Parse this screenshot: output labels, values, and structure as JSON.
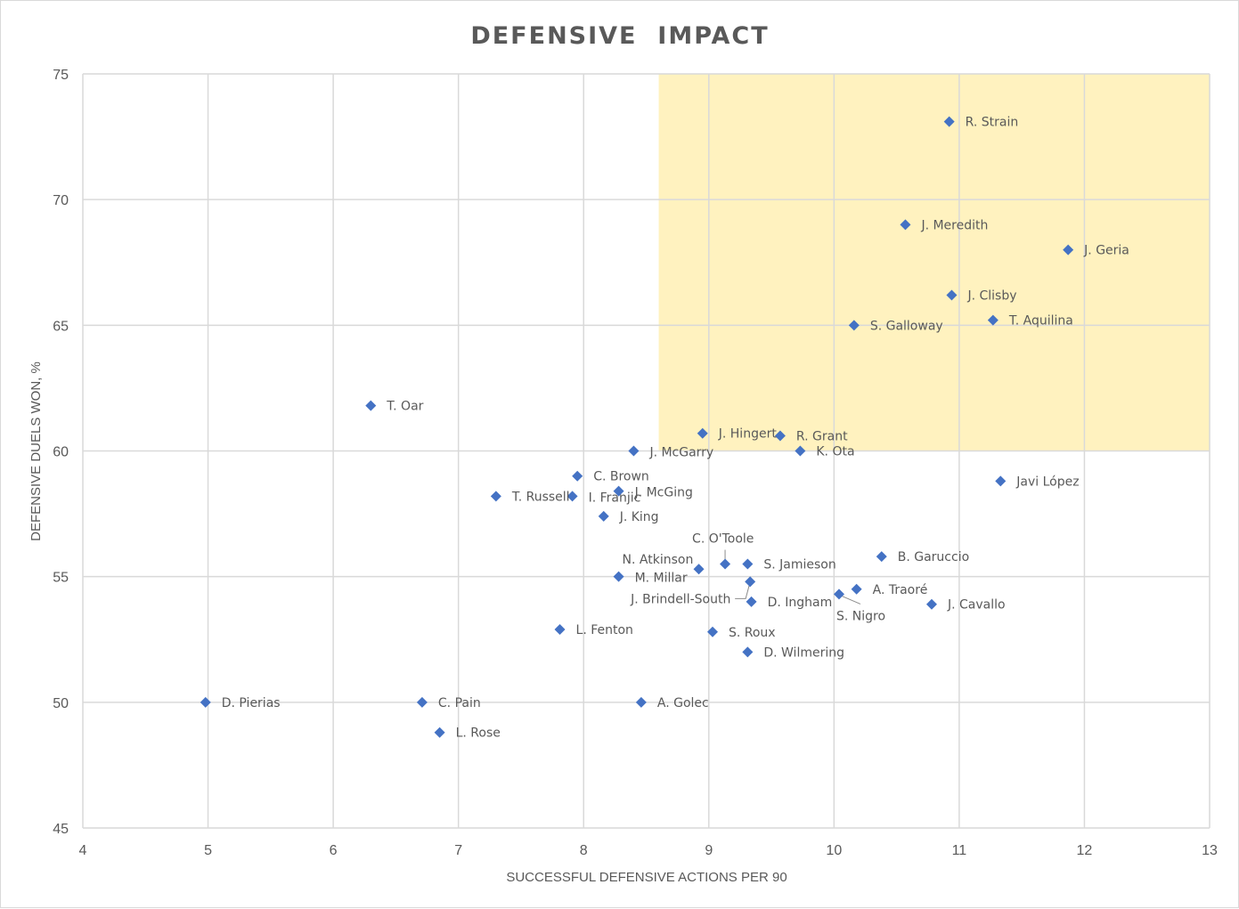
{
  "chart_data": {
    "type": "scatter",
    "title": "DEFENSIVE  IMPACT",
    "xlabel": "SUCCESSFUL DEFENSIVE ACTIONS PER 90",
    "ylabel": "DEFENSIVE DUELS WON, %",
    "xlim": [
      4,
      13
    ],
    "ylim": [
      45,
      75
    ],
    "xticks": [
      4,
      5,
      6,
      7,
      8,
      9,
      10,
      11,
      12,
      13
    ],
    "yticks": [
      45,
      50,
      55,
      60,
      65,
      70,
      75
    ],
    "grid": true,
    "legend": "none",
    "highlight_region": {
      "x": [
        8.6,
        13
      ],
      "y": [
        60,
        75
      ],
      "color": "#fff2bf"
    },
    "marker_color": "#4472c4",
    "points": [
      {
        "name": "R. Strain",
        "x": 10.92,
        "y": 73.1
      },
      {
        "name": "J. Meredith",
        "x": 10.57,
        "y": 69.0
      },
      {
        "name": "J. Geria",
        "x": 11.87,
        "y": 68.0
      },
      {
        "name": "J. Clisby",
        "x": 10.94,
        "y": 66.2
      },
      {
        "name": "T. Aquilina",
        "x": 11.27,
        "y": 65.2
      },
      {
        "name": "S. Galloway",
        "x": 10.16,
        "y": 65.0
      },
      {
        "name": "T. Oar",
        "x": 6.3,
        "y": 61.8
      },
      {
        "name": "J. Hingert",
        "x": 8.95,
        "y": 60.7
      },
      {
        "name": "R. Grant",
        "x": 9.57,
        "y": 60.6
      },
      {
        "name": "J. McGarry",
        "x": 8.4,
        "y": 60.0
      },
      {
        "name": "K. Ota",
        "x": 9.73,
        "y": 60.0
      },
      {
        "name": "C. Brown",
        "x": 7.95,
        "y": 59.0
      },
      {
        "name": "Javi López",
        "x": 11.33,
        "y": 58.8
      },
      {
        "name": "J. McGing",
        "x": 8.28,
        "y": 58.4
      },
      {
        "name": "T. Russell",
        "x": 7.3,
        "y": 58.2
      },
      {
        "name": "I. Franjic",
        "x": 7.91,
        "y": 58.2
      },
      {
        "name": "J. King",
        "x": 8.16,
        "y": 57.4
      },
      {
        "name": "C. O'Toole",
        "x": 9.13,
        "y": 55.5
      },
      {
        "name": "S. Jamieson",
        "x": 9.31,
        "y": 55.5
      },
      {
        "name": "B. Garuccio",
        "x": 10.38,
        "y": 55.8
      },
      {
        "name": "N. Atkinson",
        "x": 8.92,
        "y": 55.3
      },
      {
        "name": "M. Millar",
        "x": 8.28,
        "y": 55.0
      },
      {
        "name": "J. Brindell-South",
        "x": 9.33,
        "y": 54.8
      },
      {
        "name": "A. Traoré",
        "x": 10.18,
        "y": 54.5
      },
      {
        "name": "S. Nigro",
        "x": 10.04,
        "y": 54.3
      },
      {
        "name": "D. Ingham",
        "x": 9.34,
        "y": 54.0
      },
      {
        "name": "J. Cavallo",
        "x": 10.78,
        "y": 53.9
      },
      {
        "name": "L. Fenton",
        "x": 7.81,
        "y": 52.9
      },
      {
        "name": "S. Roux",
        "x": 9.03,
        "y": 52.8
      },
      {
        "name": "D. Wilmering",
        "x": 9.31,
        "y": 52.0
      },
      {
        "name": "D. Pierias",
        "x": 4.98,
        "y": 50.0
      },
      {
        "name": "C. Pain",
        "x": 6.71,
        "y": 50.0
      },
      {
        "name": "A. Golec",
        "x": 8.46,
        "y": 50.0
      },
      {
        "name": "L. Rose",
        "x": 6.85,
        "y": 48.8
      }
    ]
  }
}
